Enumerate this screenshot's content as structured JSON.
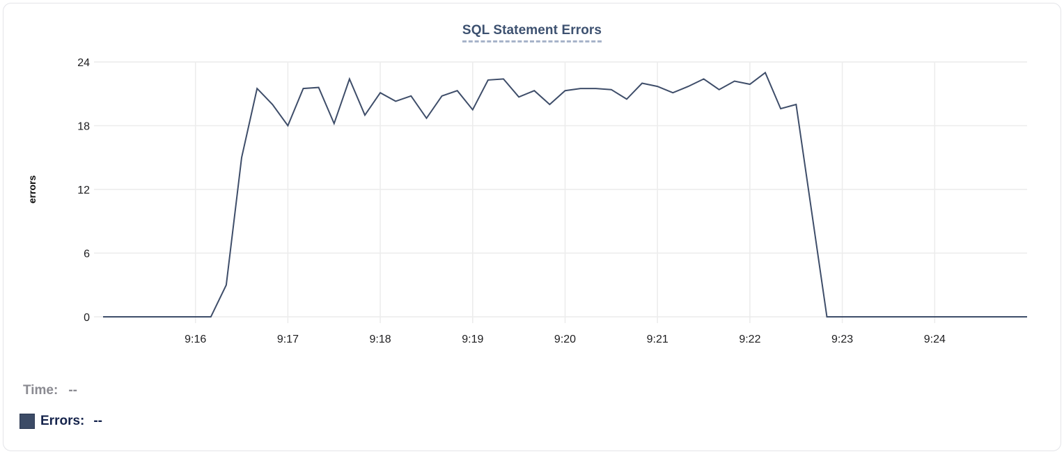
{
  "chart_data": {
    "type": "line",
    "title": "SQL Statement Errors",
    "ylabel": "errors",
    "ylim": [
      0,
      24
    ],
    "yticks": [
      0,
      6,
      12,
      18,
      24
    ],
    "xticks": [
      "9:16",
      "9:17",
      "9:18",
      "9:19",
      "9:20",
      "9:21",
      "9:22",
      "9:23",
      "9:24"
    ],
    "x_domain": [
      "9:15:00",
      "9:25:00"
    ],
    "grid": true,
    "legend_position": "bottom-left",
    "series": [
      {
        "name": "Errors",
        "color": "#3e4d69",
        "x": [
          "9:15:00",
          "9:15:10",
          "9:15:20",
          "9:15:30",
          "9:15:40",
          "9:15:50",
          "9:16:00",
          "9:16:10",
          "9:16:20",
          "9:16:30",
          "9:16:40",
          "9:16:50",
          "9:17:00",
          "9:17:10",
          "9:17:20",
          "9:17:30",
          "9:17:40",
          "9:17:50",
          "9:18:00",
          "9:18:10",
          "9:18:20",
          "9:18:30",
          "9:18:40",
          "9:18:50",
          "9:19:00",
          "9:19:10",
          "9:19:20",
          "9:19:30",
          "9:19:40",
          "9:19:50",
          "9:20:00",
          "9:20:10",
          "9:20:20",
          "9:20:30",
          "9:20:40",
          "9:20:50",
          "9:21:00",
          "9:21:10",
          "9:21:20",
          "9:21:30",
          "9:21:40",
          "9:21:50",
          "9:22:00",
          "9:22:10",
          "9:22:20",
          "9:22:30",
          "9:22:40",
          "9:22:50",
          "9:23:00",
          "9:23:10",
          "9:23:20",
          "9:23:30",
          "9:23:40",
          "9:23:50",
          "9:24:00",
          "9:24:10",
          "9:24:20",
          "9:24:30",
          "9:24:40",
          "9:24:50",
          "9:25:00"
        ],
        "values": [
          0,
          0,
          0,
          0,
          0,
          0,
          0,
          0,
          3,
          15,
          21.5,
          20,
          18,
          21.5,
          21.6,
          18.2,
          22.4,
          19,
          21.1,
          20.3,
          20.8,
          18.7,
          20.8,
          21.3,
          19.5,
          22.3,
          22.4,
          20.7,
          21.3,
          20,
          21.3,
          21.5,
          21.5,
          21.4,
          20.5,
          22,
          21.7,
          21.1,
          21.7,
          22.4,
          21.4,
          22.2,
          21.9,
          23,
          19.6,
          20,
          10,
          0,
          0,
          0,
          0,
          0,
          0,
          0,
          0,
          0,
          0,
          0,
          0,
          0,
          0
        ]
      }
    ]
  },
  "tooltip_readout": {
    "time_label": "Time:",
    "time_value": "--",
    "errors_label": "Errors:",
    "errors_value": "--"
  },
  "colors": {
    "line": "#3e4d69",
    "title": "#3d5170",
    "title_underline": "#a7b3c9",
    "grid": "#ececec",
    "axis_text": "#1d1d1f",
    "ylabel_text": "#0a0a0a",
    "time_gray": "#8a8a91",
    "errors_navy": "#16244c",
    "swatch": "#3c4b66",
    "card_border": "#e3e4e8"
  }
}
